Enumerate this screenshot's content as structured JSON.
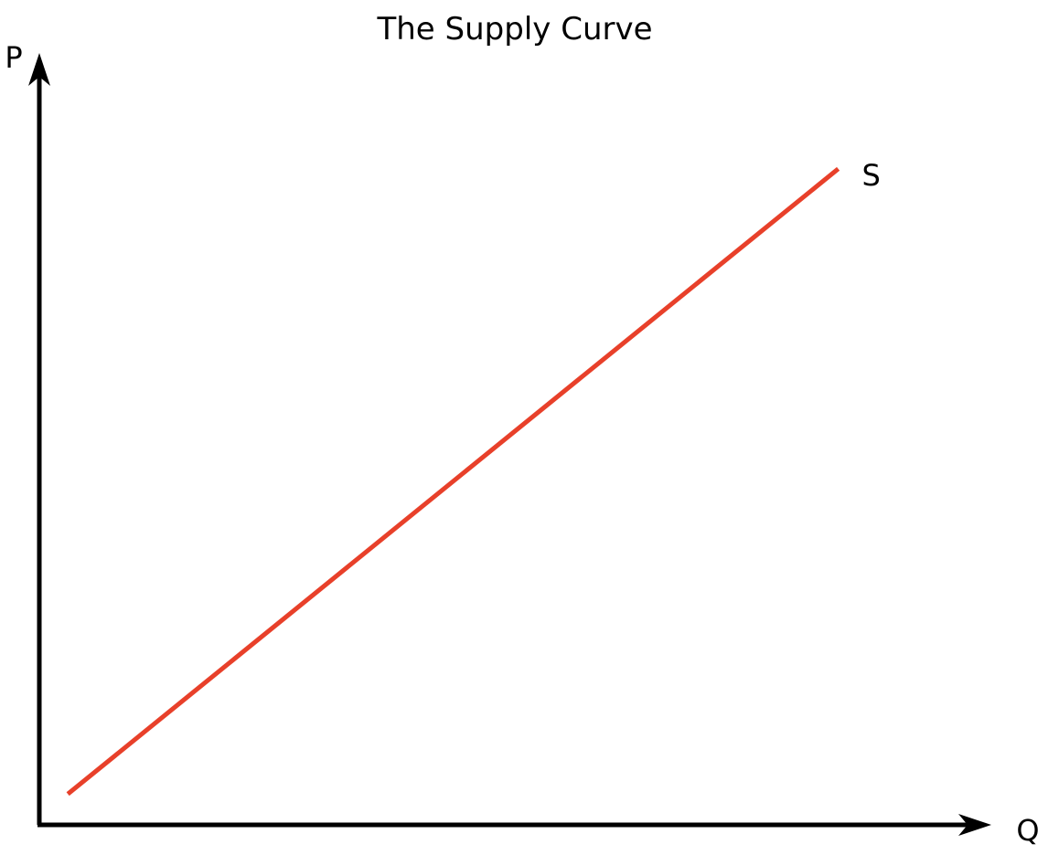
{
  "chart_data": {
    "type": "line",
    "title": "The Supply Curve",
    "xlabel": "Q",
    "ylabel": "P",
    "grid": false,
    "ticks": false,
    "xlim": [
      0,
      100
    ],
    "ylim": [
      0,
      100
    ],
    "series": [
      {
        "name": "S",
        "color": "#e8402a",
        "x": [
          3,
          84
        ],
        "y": [
          4,
          85
        ]
      }
    ]
  }
}
